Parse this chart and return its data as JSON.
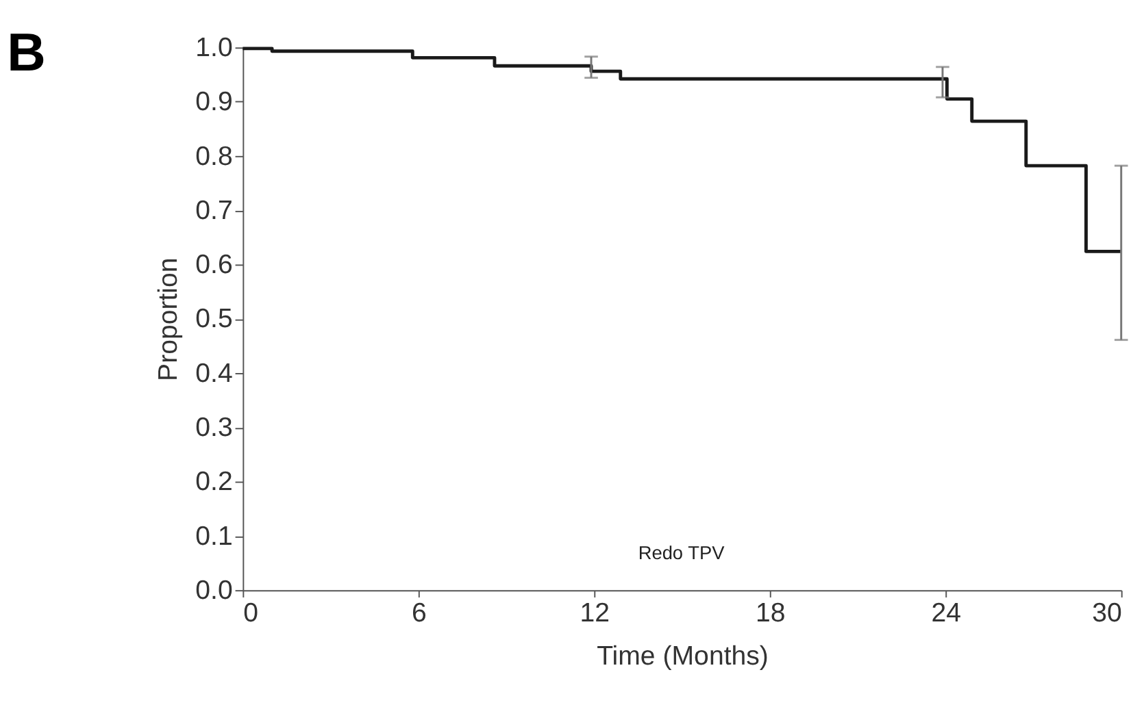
{
  "chart_data": {
    "type": "step",
    "title": "B",
    "xlabel": "Time (Months)",
    "ylabel": "Proportion",
    "xlim": [
      0,
      30
    ],
    "xticks": [
      0,
      6,
      12,
      18,
      24,
      30
    ],
    "ylim": [
      0,
      1.0
    ],
    "yticks": [
      {
        "value": 0,
        "label": "0.0"
      },
      {
        "value": 0.1,
        "label": "0.1"
      },
      {
        "value": 0.2,
        "label": "0.2"
      },
      {
        "value": 0.3,
        "label": "0.3"
      },
      {
        "value": 0.4,
        "label": "0.4"
      },
      {
        "value": 0.5,
        "label": "0.5"
      },
      {
        "value": 0.6,
        "label": "0.6"
      },
      {
        "value": 0.7,
        "label": "0.7"
      },
      {
        "value": 0.8,
        "label": "0.8"
      },
      {
        "value": 0.9,
        "label": "0.9"
      },
      {
        "value": 1.0,
        "label": "1.0"
      }
    ],
    "grid": false,
    "legend": false,
    "marker": "none",
    "line_style": "solid",
    "series": [
      {
        "color": "#1a1a1a",
        "x": [
          0,
          1.0,
          5.8,
          8.6,
          11.9,
          12.9,
          23.9,
          24.05,
          24.9,
          26.75,
          28.8,
          30
        ],
        "values": [
          0.998,
          0.993,
          0.981,
          0.966,
          0.956,
          0.942,
          0.942,
          0.905,
          0.864,
          0.782,
          0.624,
          0.624
        ],
        "errors": [
          null,
          null,
          null,
          null,
          [
            0.944,
            0.983
          ],
          null,
          [
            0.908,
            0.964
          ],
          null,
          null,
          null,
          null,
          [
            0.461,
            0.782
          ]
        ]
      }
    ],
    "annotations": [
      "Redo TPV"
    ]
  }
}
